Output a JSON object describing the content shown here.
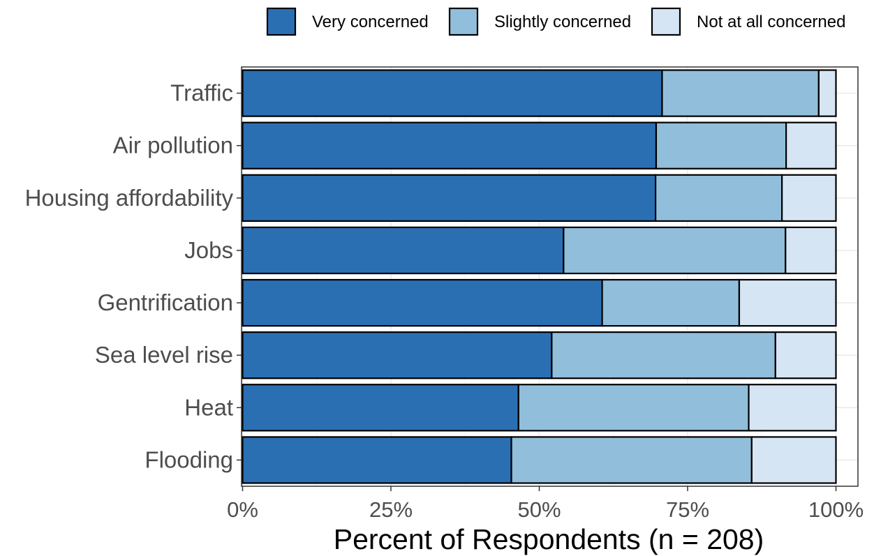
{
  "chart_data": {
    "type": "bar",
    "orientation": "horizontal",
    "stacked": true,
    "title": "",
    "xlabel": "Percent of Respondents (n = 208)",
    "ylabel": "",
    "xlim": [
      0,
      100
    ],
    "x_unit": "percent",
    "grid": true,
    "legend_position": "top-right",
    "x_ticks": [
      {
        "value": 0,
        "label": "0%"
      },
      {
        "value": 25,
        "label": "25%"
      },
      {
        "value": 50,
        "label": "50%"
      },
      {
        "value": 75,
        "label": "75%"
      },
      {
        "value": 100,
        "label": "100%"
      }
    ],
    "categories": [
      "Traffic",
      "Air pollution",
      "Housing affordability",
      "Jobs",
      "Gentrification",
      "Sea level rise",
      "Heat",
      "Flooding"
    ],
    "series": [
      {
        "name": "Very concerned",
        "color": "#2b6fb3",
        "values": [
          70.7,
          69.7,
          69.6,
          54.1,
          60.6,
          52.1,
          46.5,
          45.3
        ]
      },
      {
        "name": "Slightly concerned",
        "color": "#91bedb",
        "values": [
          26.4,
          21.9,
          21.3,
          37.4,
          23.1,
          37.7,
          38.8,
          40.5
        ]
      },
      {
        "name": "Not at all concerned",
        "color": "#d6e5f4",
        "values": [
          2.9,
          8.4,
          9.1,
          8.5,
          16.3,
          10.2,
          14.7,
          14.2
        ]
      }
    ]
  }
}
